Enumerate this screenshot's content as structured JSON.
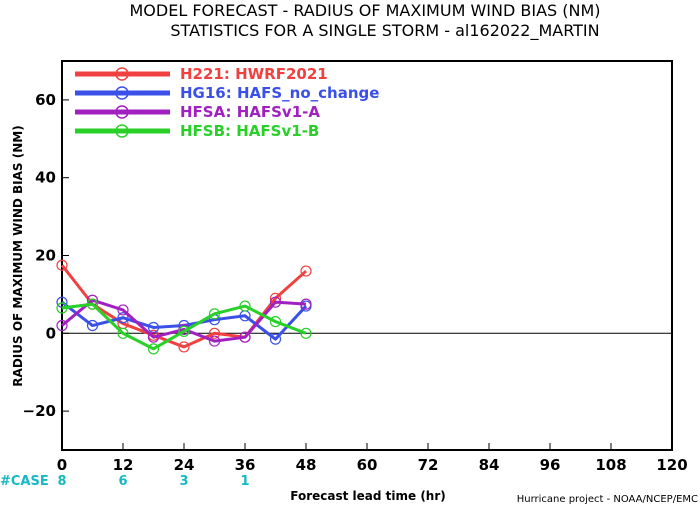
{
  "chart_data": {
    "type": "line",
    "title": "MODEL FORECAST - RADIUS OF MAXIMUM WIND BIAS (NM)",
    "subtitle": "STATISTICS FOR A SINGLE STORM - al162022_MARTIN",
    "xlabel": "Forecast lead time (hr)",
    "ylabel": "RADIUS OF MAXIMUM WIND BIAS (NM)",
    "xlim": [
      0,
      120
    ],
    "ylim": [
      -30,
      70
    ],
    "xticks": [
      0,
      12,
      24,
      36,
      48,
      60,
      72,
      84,
      96,
      108,
      120
    ],
    "yticks": [
      -20,
      0,
      20,
      40,
      60
    ],
    "x": [
      0,
      6,
      12,
      18,
      24,
      30,
      36,
      42,
      48
    ],
    "series": [
      {
        "name": "H221: HWRF2021",
        "color": "#f04040",
        "values": [
          17.5,
          7.5,
          2.5,
          -0.5,
          -3.5,
          0.0,
          -1.0,
          9.0,
          16.0
        ]
      },
      {
        "name": "HG16: HAFS_no_change",
        "color": "#3a50e8",
        "values": [
          8.0,
          2.0,
          4.0,
          1.5,
          2.0,
          3.5,
          4.5,
          -1.5,
          7.0
        ]
      },
      {
        "name": "HFSA: HAFSv1-A",
        "color": "#a020c0",
        "values": [
          2.0,
          8.5,
          6.0,
          -1.0,
          1.0,
          -2.0,
          -1.0,
          8.0,
          7.5
        ]
      },
      {
        "name": "HFSB: HAFSv1-B",
        "color": "#28d028",
        "values": [
          6.5,
          7.5,
          0.0,
          -4.0,
          0.5,
          5.0,
          7.0,
          3.0,
          0.0
        ]
      }
    ],
    "grid": false,
    "legend_position": "top-left",
    "case_label": "#CASE",
    "case_counts": [
      {
        "x": 0,
        "count": "8"
      },
      {
        "x": 12,
        "count": "6"
      },
      {
        "x": 24,
        "count": "3"
      },
      {
        "x": 36,
        "count": "1"
      }
    ],
    "credit": "Hurricane project - NOAA/NCEP/EMC"
  }
}
